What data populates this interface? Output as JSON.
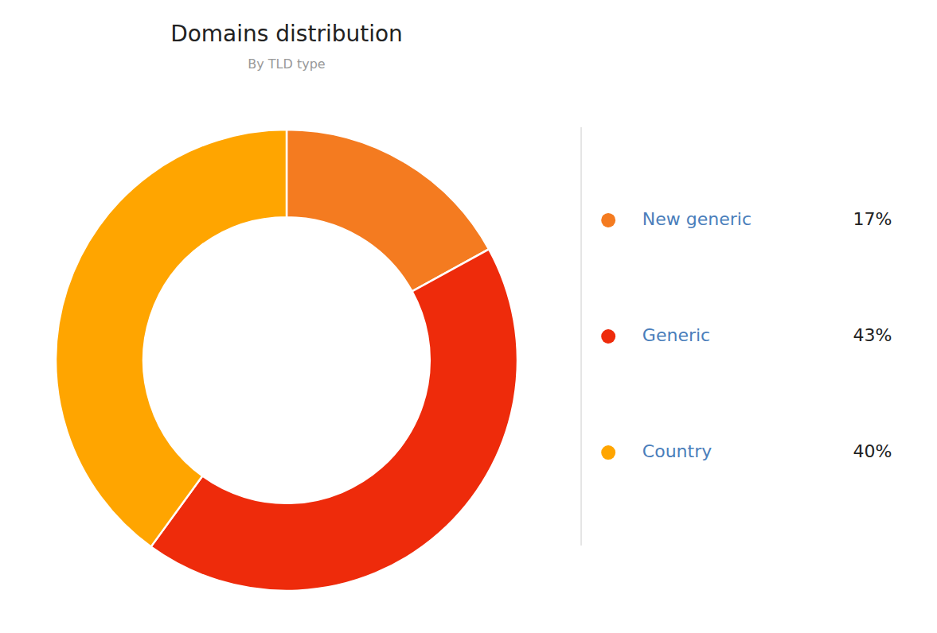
{
  "chart_data": {
    "type": "pie",
    "title": "Domains distribution",
    "subtitle": "By TLD type",
    "categories": [
      "New generic",
      "Generic",
      "Country"
    ],
    "values": [
      17,
      43,
      40
    ],
    "value_labels": [
      "17%",
      "43%",
      "40%"
    ],
    "colors": [
      "#F47B20",
      "#EE2B0B",
      "#FFA500"
    ],
    "legend": "right"
  }
}
